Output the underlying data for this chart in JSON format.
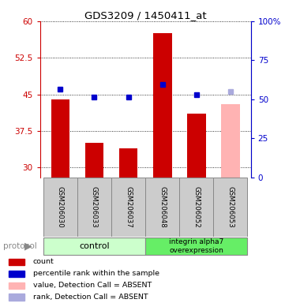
{
  "title": "GDS3209 / 1450411_at",
  "samples": [
    "GSM206030",
    "GSM206033",
    "GSM206037",
    "GSM206048",
    "GSM206052",
    "GSM206053"
  ],
  "bar_values": [
    44.0,
    35.0,
    34.0,
    57.5,
    41.0,
    43.0
  ],
  "bar_colors": [
    "#cc0000",
    "#cc0000",
    "#cc0000",
    "#cc0000",
    "#cc0000",
    "#ffb3b3"
  ],
  "dot_values": [
    46.0,
    44.5,
    44.5,
    47.0,
    45.0,
    45.5
  ],
  "dot_colors": [
    "#0000cc",
    "#0000cc",
    "#0000cc",
    "#0000cc",
    "#0000cc",
    "#aaaadd"
  ],
  "bar_absent": [
    false,
    false,
    false,
    false,
    false,
    true
  ],
  "dot_absent": [
    false,
    false,
    false,
    false,
    false,
    true
  ],
  "groups": [
    {
      "label": "control",
      "n": 3,
      "color": "#ccffcc"
    },
    {
      "label": "integrin alpha7\noverexpression",
      "n": 3,
      "color": "#66ee66"
    }
  ],
  "protocol_label": "protocol",
  "ylim_left": [
    28,
    60
  ],
  "ylim_right": [
    0,
    100
  ],
  "yticks_left": [
    30,
    37.5,
    45,
    52.5,
    60
  ],
  "yticks_right": [
    0,
    25,
    50,
    75,
    100
  ],
  "ytick_labels_left": [
    "30",
    "37.5",
    "45",
    "52.5",
    "60"
  ],
  "ytick_labels_right": [
    "0",
    "25",
    "50",
    "75",
    "100%"
  ],
  "left_axis_color": "#cc0000",
  "right_axis_color": "#0000cc",
  "legend_items": [
    {
      "color": "#cc0000",
      "label": "count"
    },
    {
      "color": "#0000cc",
      "label": "percentile rank within the sample"
    },
    {
      "color": "#ffb3b3",
      "label": "value, Detection Call = ABSENT"
    },
    {
      "color": "#aaaadd",
      "label": "rank, Detection Call = ABSENT"
    }
  ],
  "bar_width": 0.55,
  "background_color": "#ffffff",
  "label_area_color": "#cccccc",
  "plot_bg_color": "#ffffff"
}
